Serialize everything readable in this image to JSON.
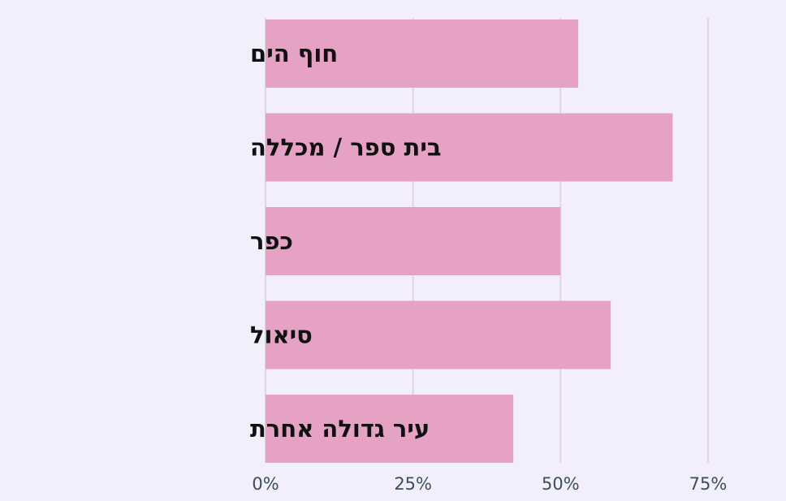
{
  "colors": {
    "background": "#f3eefb",
    "bar": "#e6a2c4",
    "grid": "#dcd6e4",
    "label_text": "#111111",
    "tick_text": "#3c4f57"
  },
  "chart_data": {
    "type": "bar",
    "orientation": "horizontal",
    "categories": [
      "חוף הים",
      "בית ספר / מכללה",
      "כפר",
      "סיאול",
      "עיר גדולה אחרת"
    ],
    "values": [
      53,
      69,
      50,
      58.5,
      42
    ],
    "xlim": [
      0,
      75
    ],
    "x_ticks": [
      0,
      25,
      50,
      75
    ],
    "x_tick_labels": [
      "0%",
      "25%",
      "50%",
      "75%"
    ],
    "grid": true,
    "title": "",
    "xlabel": "",
    "ylabel": ""
  }
}
